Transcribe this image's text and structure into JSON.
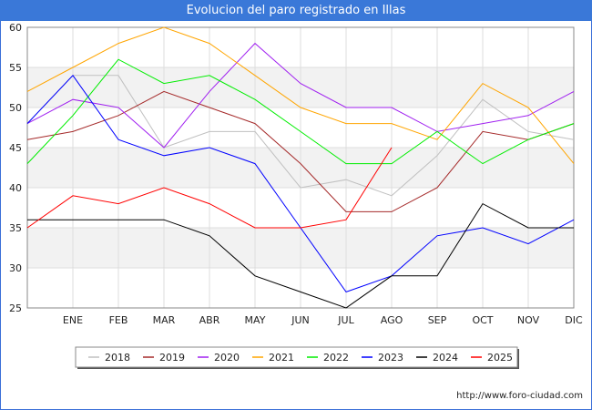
{
  "page": {
    "title": "Evolucion del paro registrado en Illas",
    "watermark": "http://www.foro-ciudad.com"
  },
  "chart_data": {
    "type": "line",
    "title": "Evolucion del paro registrado en Illas",
    "xlabel": "",
    "ylabel": "",
    "categories": [
      "",
      "ENE",
      "FEB",
      "MAR",
      "ABR",
      "MAY",
      "JUN",
      "JUL",
      "AGO",
      "SEP",
      "OCT",
      "NOV",
      "DIC"
    ],
    "ylim": [
      25,
      60
    ],
    "yticks": [
      25,
      30,
      35,
      40,
      45,
      50,
      55,
      60
    ],
    "grid": true,
    "legend_position": "bottom",
    "series": [
      {
        "name": "2018",
        "color": "#c0c0c0",
        "values": [
          48,
          54,
          54,
          45,
          47,
          47,
          40,
          41,
          39,
          44,
          51,
          47,
          46
        ]
      },
      {
        "name": "2019",
        "color": "#a52a2a",
        "values": [
          46,
          47,
          49,
          52,
          50,
          48,
          43,
          37,
          37,
          40,
          47,
          46,
          48
        ]
      },
      {
        "name": "2020",
        "color": "#a020f0",
        "values": [
          48,
          51,
          50,
          45,
          52,
          58,
          53,
          50,
          50,
          47,
          48,
          49,
          52
        ]
      },
      {
        "name": "2021",
        "color": "#ffa500",
        "values": [
          52,
          55,
          58,
          60,
          58,
          54,
          50,
          48,
          48,
          46,
          53,
          50,
          43
        ]
      },
      {
        "name": "2022",
        "color": "#00ee00",
        "values": [
          43,
          49,
          56,
          53,
          54,
          51,
          47,
          43,
          43,
          47,
          43,
          46,
          48
        ]
      },
      {
        "name": "2023",
        "color": "#0000ff",
        "values": [
          48,
          54,
          46,
          44,
          45,
          43,
          35,
          27,
          29,
          34,
          35,
          33,
          36
        ]
      },
      {
        "name": "2024",
        "color": "#000000",
        "values": [
          36,
          36,
          36,
          36,
          34,
          29,
          27,
          25,
          29,
          29,
          38,
          35,
          35
        ]
      },
      {
        "name": "2025",
        "color": "#ff0000",
        "values": [
          35,
          39,
          38,
          40,
          38,
          35,
          35,
          36,
          45,
          null,
          null,
          null,
          null
        ]
      }
    ]
  }
}
